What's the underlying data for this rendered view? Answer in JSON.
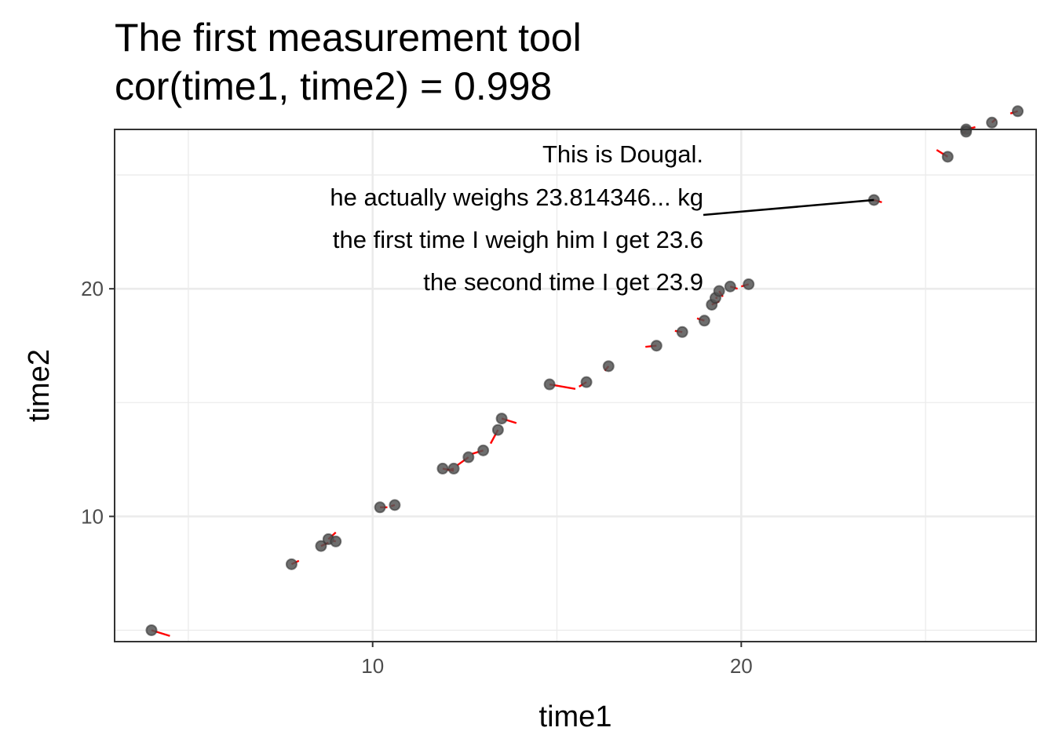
{
  "chart_data": {
    "type": "scatter",
    "title": "The first measurement tool",
    "subtitle": "cor(time1, time2) = 0.998",
    "xlabel": "time1",
    "ylabel": "time2",
    "xlim": [
      3,
      28
    ],
    "ylim": [
      4.5,
      27
    ],
    "x_ticks": [
      10,
      20
    ],
    "y_ticks": [
      10,
      20
    ],
    "grid": true,
    "point_color": "#555555",
    "segment_color": "#ff0000",
    "annotation_line_color": "#000000",
    "points": [
      {
        "x": 4.0,
        "y": 5.0,
        "true_x": 4.5,
        "true_y": 4.75
      },
      {
        "x": 7.8,
        "y": 7.9,
        "true_x": 8.0,
        "true_y": 8.05
      },
      {
        "x": 8.6,
        "y": 8.7,
        "true_x": 8.8,
        "true_y": 8.85
      },
      {
        "x": 8.8,
        "y": 9.0,
        "true_x": 9.0,
        "true_y": 9.3
      },
      {
        "x": 9.0,
        "y": 8.9,
        "true_x": 8.9,
        "true_y": 8.95
      },
      {
        "x": 10.2,
        "y": 10.4,
        "true_x": 10.4,
        "true_y": 10.4
      },
      {
        "x": 10.6,
        "y": 10.5,
        "true_x": 10.5,
        "true_y": 10.45
      },
      {
        "x": 11.9,
        "y": 12.1,
        "true_x": 12.2,
        "true_y": 12.0
      },
      {
        "x": 12.2,
        "y": 12.1,
        "true_x": 12.1,
        "true_y": 12.05
      },
      {
        "x": 12.6,
        "y": 12.6,
        "true_x": 12.3,
        "true_y": 12.25
      },
      {
        "x": 13.0,
        "y": 12.9,
        "true_x": 12.7,
        "true_y": 12.75
      },
      {
        "x": 13.4,
        "y": 13.8,
        "true_x": 13.2,
        "true_y": 13.2
      },
      {
        "x": 13.5,
        "y": 14.3,
        "true_x": 13.9,
        "true_y": 14.1
      },
      {
        "x": 14.8,
        "y": 15.8,
        "true_x": 15.5,
        "true_y": 15.6
      },
      {
        "x": 15.8,
        "y": 15.9,
        "true_x": 15.6,
        "true_y": 15.7
      },
      {
        "x": 16.4,
        "y": 16.6,
        "true_x": 16.3,
        "true_y": 16.4
      },
      {
        "x": 17.7,
        "y": 17.5,
        "true_x": 17.4,
        "true_y": 17.45
      },
      {
        "x": 18.4,
        "y": 18.1,
        "true_x": 18.2,
        "true_y": 18.15
      },
      {
        "x": 19.0,
        "y": 18.6,
        "true_x": 18.8,
        "true_y": 18.7
      },
      {
        "x": 19.2,
        "y": 19.3,
        "true_x": 19.4,
        "true_y": 19.45
      },
      {
        "x": 19.3,
        "y": 19.6,
        "true_x": 19.35,
        "true_y": 19.6
      },
      {
        "x": 19.4,
        "y": 19.9,
        "true_x": 19.5,
        "true_y": 19.65
      },
      {
        "x": 19.7,
        "y": 20.1,
        "true_x": 19.9,
        "true_y": 20.0
      },
      {
        "x": 20.2,
        "y": 20.2,
        "true_x": 20.0,
        "true_y": 20.1
      },
      {
        "x": 23.6,
        "y": 23.9,
        "true_x": 23.814346,
        "true_y": 23.8
      },
      {
        "x": 25.6,
        "y": 25.8,
        "true_x": 25.3,
        "true_y": 26.1
      },
      {
        "x": 26.1,
        "y": 27.0,
        "true_x": 26.35,
        "true_y": 27.1
      },
      {
        "x": 26.1,
        "y": 26.9,
        "true_x": 26.0,
        "true_y": 26.85
      },
      {
        "x": 26.8,
        "y": 27.3,
        "true_x": 26.9,
        "true_y": 27.45
      },
      {
        "x": 27.5,
        "y": 27.8,
        "true_x": 27.3,
        "true_y": 27.7
      }
    ],
    "annotation": {
      "lines": [
        "This is Dougal.",
        "he actually weighs 23.814346... kg",
        "the first time I weigh him I get 23.6",
        "the second time I get 23.9"
      ],
      "target": {
        "x": 23.6,
        "y": 23.9
      }
    }
  }
}
